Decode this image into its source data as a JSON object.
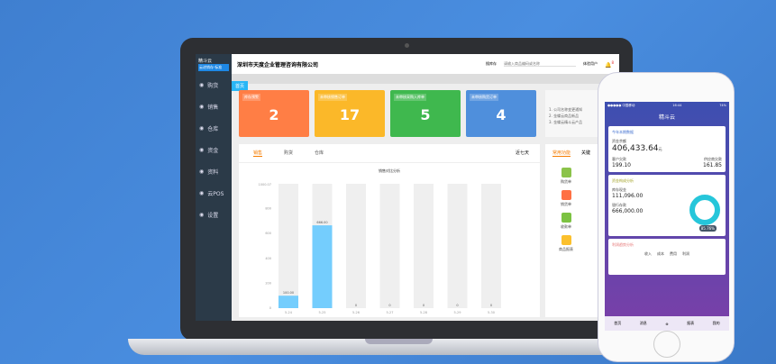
{
  "app": {
    "logo": "精斗云",
    "logo_tag": "云进销存·标准",
    "company": "深圳市天度企业管理咨询有限公司",
    "warehouse": "搜库存",
    "search_placeholder": "请输入商品编码或名称",
    "user": "体验用户",
    "badge": "8",
    "home_tab": "首页"
  },
  "sidebar": {
    "items": [
      {
        "label": "购货",
        "icon": "cart-icon"
      },
      {
        "label": "销售",
        "icon": "sale-icon"
      },
      {
        "label": "仓库",
        "icon": "warehouse-icon"
      },
      {
        "label": "资金",
        "icon": "money-icon"
      },
      {
        "label": "资料",
        "icon": "pen-icon"
      },
      {
        "label": "云POS",
        "icon": "pos-icon"
      },
      {
        "label": "设置",
        "icon": "gear-icon"
      }
    ]
  },
  "cards": [
    {
      "title": "库存预警",
      "value": "2",
      "color": "#ff7e45"
    },
    {
      "title": "未审核销售订单",
      "value": "17",
      "color": "#fbb829"
    },
    {
      "title": "未审核采购入库单",
      "value": "5",
      "color": "#3fb84e"
    },
    {
      "title": "未审核购货订单",
      "value": "4",
      "color": "#4f8fdc"
    }
  ],
  "notice": [
    "1. 公司名称变更通知",
    "2. 金蝶云商品新品",
    "3. 金蝶云精斗云产品"
  ],
  "chart_tabs": [
    "销售",
    "购货",
    "仓库"
  ],
  "range": "近七天",
  "chart_data": {
    "type": "bar",
    "title": "销售对比分析",
    "categories": [
      "5-24",
      "5-25",
      "5-26",
      "5-27",
      "5-28",
      "5-29",
      "5-30"
    ],
    "values": [
      100.0,
      666.0,
      0,
      0,
      0,
      0,
      0
    ],
    "data_labels": [
      "100.00",
      "666.00",
      "0",
      "0",
      "0",
      "0",
      "0"
    ],
    "yticks": [
      0,
      200,
      400,
      600,
      800
    ],
    "ymax_label": "1000.07",
    "ylim": [
      0,
      1000.07
    ],
    "bar_color": "#74cdfd",
    "track_color": "#efefef"
  },
  "right_tabs": [
    "常用功能",
    "关键"
  ],
  "shortcuts": [
    {
      "label": "购货单",
      "color": "#8bc34a"
    },
    {
      "label": "销货单",
      "color": "#ff7043"
    },
    {
      "label": "收款单",
      "color": "#7cc242"
    },
    {
      "label": "商品报表",
      "color": "#fbc02d"
    }
  ],
  "phone": {
    "status": "●●●●● 中国移动",
    "time": "16:44",
    "battery": "74%",
    "title": "精斗云",
    "card1_title": "今年本期数据",
    "balance_label": "资金余额",
    "balance": "406,433.64",
    "unit": "元",
    "l1": "客户欠款",
    "v1": "199.10",
    "l2": "供应商欠款",
    "v2": "161.85",
    "card2_title": "资金构成分析",
    "l3": "库存现金",
    "v3": "111,096.00",
    "l4": "银行存款",
    "v4": "666,000.00",
    "pct": "85.76%",
    "card3_title": "利润趋势分析",
    "legend": [
      "收入",
      "成本",
      "费用",
      "利润"
    ],
    "tabs": [
      "首页",
      "消息",
      "",
      "报表",
      "我的"
    ]
  }
}
